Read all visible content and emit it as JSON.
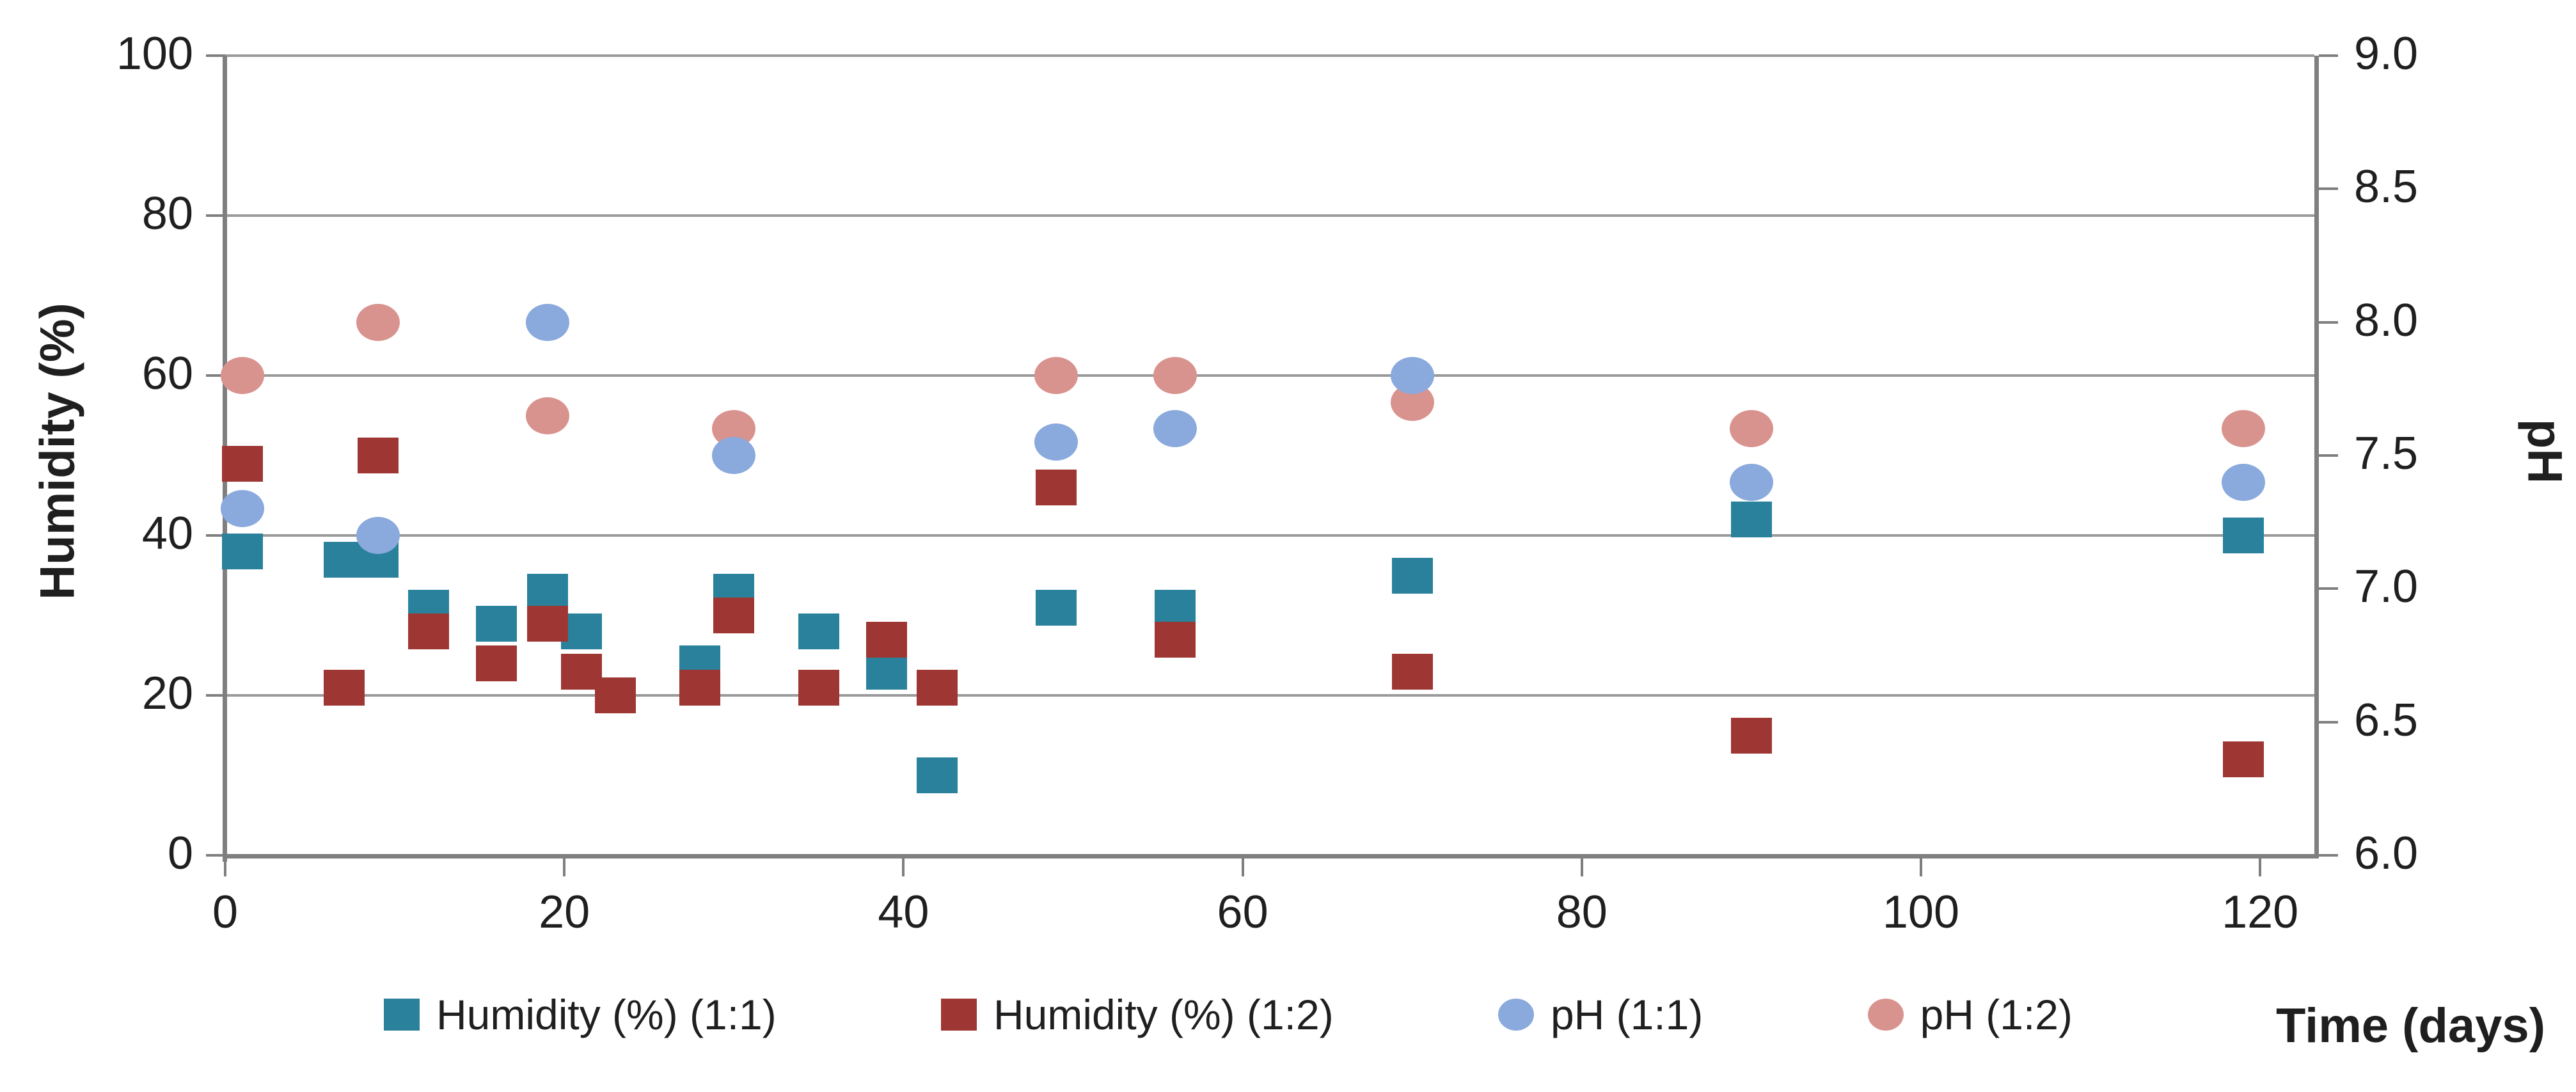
{
  "chart_data": {
    "type": "scatter",
    "title": "",
    "xlabel": "Time (days)",
    "ylabel_left": "Humidity (%)",
    "ylabel_right": "pH",
    "grid": "horizontal",
    "legend_position": "bottom",
    "xlim": [
      0,
      123.2
    ],
    "ylim_left": [
      0,
      100
    ],
    "ylim_right": [
      6.0,
      9.0
    ],
    "x_ticks": [
      0,
      20,
      40,
      60,
      80,
      100,
      120
    ],
    "left_ticks": [
      100,
      80,
      60,
      40,
      20,
      0
    ],
    "right_tick_labels": [
      "9.0",
      "8.5",
      "8.0",
      "7.5",
      "7.0",
      "6.5",
      "6.0"
    ],
    "colors": {
      "humidity_1_1": "#2A819B",
      "humidity_1_2": "#9E3733",
      "ph_1_1": "#8AA9DC",
      "ph_1_2": "#D9938F",
      "gridline": "#9A9A9A",
      "axis": "#7F7F7F"
    },
    "series": [
      {
        "name": "Humidity (%) (1:1)",
        "axis": "left",
        "marker": "square",
        "color": "#2A819B",
        "points": [
          [
            1,
            38
          ],
          [
            7,
            37
          ],
          [
            9,
            37
          ],
          [
            12,
            31
          ],
          [
            16,
            29
          ],
          [
            19,
            33
          ],
          [
            21,
            28
          ],
          [
            28,
            24
          ],
          [
            30,
            33
          ],
          [
            35,
            28
          ],
          [
            39,
            23
          ],
          [
            42,
            10
          ],
          [
            49,
            31
          ],
          [
            56,
            31
          ],
          [
            70,
            35
          ],
          [
            90,
            42
          ],
          [
            119,
            40
          ]
        ]
      },
      {
        "name": "Humidity (%) (1:2)",
        "axis": "left",
        "marker": "square",
        "color": "#9E3733",
        "points": [
          [
            1,
            49
          ],
          [
            7,
            21
          ],
          [
            9,
            50
          ],
          [
            12,
            28
          ],
          [
            16,
            24
          ],
          [
            19,
            29
          ],
          [
            21,
            23
          ],
          [
            23,
            20
          ],
          [
            28,
            21
          ],
          [
            30,
            30
          ],
          [
            35,
            21
          ],
          [
            39,
            27
          ],
          [
            42,
            21
          ],
          [
            49,
            46
          ],
          [
            56,
            27
          ],
          [
            70,
            23
          ],
          [
            90,
            15
          ],
          [
            119,
            12
          ]
        ]
      },
      {
        "name": "pH (1:1)",
        "axis": "right",
        "marker": "circle",
        "color": "#8AA9DC",
        "points": [
          [
            1,
            7.3
          ],
          [
            9,
            7.2
          ],
          [
            19,
            8.0
          ],
          [
            30,
            7.5
          ],
          [
            49,
            7.55
          ],
          [
            56,
            7.6
          ],
          [
            70,
            7.8
          ],
          [
            90,
            7.4
          ],
          [
            119,
            7.4
          ]
        ]
      },
      {
        "name": "pH (1:2)",
        "axis": "right",
        "marker": "circle",
        "color": "#D9938F",
        "points": [
          [
            1,
            7.8
          ],
          [
            9,
            8.0
          ],
          [
            19,
            7.65
          ],
          [
            30,
            7.6
          ],
          [
            49,
            7.8
          ],
          [
            56,
            7.8
          ],
          [
            70,
            7.7
          ],
          [
            90,
            7.6
          ],
          [
            119,
            7.6
          ]
        ]
      }
    ]
  }
}
